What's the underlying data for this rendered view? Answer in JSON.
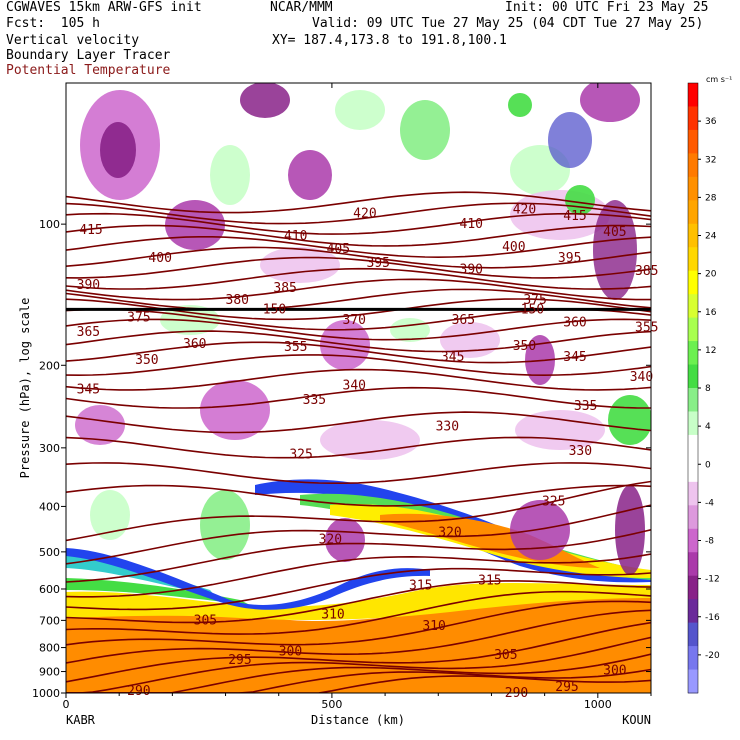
{
  "header": {
    "model": "CGWAVES 15km ARW-GFS init",
    "fcst": "Fcst:  105 h",
    "center": "NCAR/MMM",
    "init": "Init: 00 UTC Fri 23 May 25",
    "valid": "Valid: 09 UTC Tue 27 May 25 (04 CDT Tue 27 May 25)",
    "xy": "XY= 187.4,173.8 to 191.8,100.1",
    "field1": "Vertical velocity",
    "field2": "Boundary Layer Tracer",
    "field3": "Potential Temperature"
  },
  "colors": {
    "theta": "#7a0000",
    "field3": "#8b1a1a"
  },
  "chart_data": {
    "type": "heatmap",
    "title": "Vertical velocity, Boundary Layer Tracer, Potential Temperature",
    "xlabel": "Distance (km)",
    "ylabel": "Pressure (hPa), log scale",
    "xlim": [
      0,
      1100
    ],
    "ylim": [
      1000,
      50
    ],
    "y_scale": "log",
    "x_ticks": [
      "0",
      "500",
      "1000"
    ],
    "x_tick_values": [
      0,
      500,
      1000
    ],
    "y_ticks": [
      "100",
      "200",
      "300",
      "400",
      "500",
      "600",
      "700",
      "800",
      "900",
      "1000"
    ],
    "y_tick_values": [
      100,
      200,
      300,
      400,
      500,
      600,
      700,
      800,
      900,
      1000
    ],
    "endpoints": {
      "left": "KABR",
      "right": "KOUN"
    },
    "colorbar": {
      "unit": "cm s⁻¹",
      "labels": [
        "36",
        "32",
        "28",
        "24",
        "20",
        "16",
        "12",
        "8",
        "4",
        "0",
        "-4",
        "-8",
        "-12",
        "-16",
        "-20"
      ],
      "label_values": [
        36,
        32,
        28,
        24,
        20,
        16,
        12,
        8,
        4,
        0,
        -4,
        -8,
        -12,
        -16,
        -20
      ],
      "colors": [
        "#ff0000",
        "#ff3300",
        "#ff5a00",
        "#ff7a00",
        "#ff9000",
        "#ffa500",
        "#ffc000",
        "#ffd700",
        "#ffff00",
        "#d8ff30",
        "#a8ff50",
        "#6cf050",
        "#44dd44",
        "#88ee88",
        "#c8ffc8",
        "#ffffff",
        "#ffffff",
        "#eec4ee",
        "#dd99dd",
        "#cc66cc",
        "#aa3aaa",
        "#882288",
        "#6a2a9a",
        "#5555cc",
        "#7777ee",
        "#9999ff"
      ]
    },
    "theta_contours": {
      "label_values": [
        290,
        295,
        300,
        305,
        310,
        315,
        320,
        325,
        330,
        335,
        340,
        345,
        350,
        355,
        360,
        365,
        370,
        375,
        380,
        385,
        390,
        395,
        400,
        405,
        410,
        415,
        420
      ],
      "labels": [
        {
          "v": "415",
          "x": 25,
          "p": 103
        },
        {
          "v": "420",
          "x": 540,
          "p": 95
        },
        {
          "v": "420",
          "x": 840,
          "p": 93
        },
        {
          "v": "415",
          "x": 935,
          "p": 96
        },
        {
          "v": "410",
          "x": 410,
          "p": 106
        },
        {
          "v": "410",
          "x": 740,
          "p": 100
        },
        {
          "v": "405",
          "x": 490,
          "p": 113
        },
        {
          "v": "405",
          "x": 1010,
          "p": 104
        },
        {
          "v": "400",
          "x": 155,
          "p": 118
        },
        {
          "v": "400",
          "x": 820,
          "p": 112
        },
        {
          "v": "395",
          "x": 565,
          "p": 121
        },
        {
          "v": "395",
          "x": 925,
          "p": 118
        },
        {
          "v": "390",
          "x": 20,
          "p": 135
        },
        {
          "v": "390",
          "x": 740,
          "p": 125
        },
        {
          "v": "385",
          "x": 390,
          "p": 137
        },
        {
          "v": "385",
          "x": 1070,
          "p": 126
        },
        {
          "v": "380",
          "x": 300,
          "p": 145
        },
        {
          "v": "375",
          "x": 115,
          "p": 158
        },
        {
          "v": "375",
          "x": 860,
          "p": 145
        },
        {
          "v": "370",
          "x": 520,
          "p": 160
        },
        {
          "v": "365",
          "x": 20,
          "p": 170
        },
        {
          "v": "365",
          "x": 725,
          "p": 160
        },
        {
          "v": "360",
          "x": 220,
          "p": 180
        },
        {
          "v": "360",
          "x": 935,
          "p": 162
        },
        {
          "v": "355",
          "x": 410,
          "p": 183
        },
        {
          "v": "355",
          "x": 1070,
          "p": 166
        },
        {
          "v": "350",
          "x": 130,
          "p": 195
        },
        {
          "v": "350",
          "x": 840,
          "p": 182
        },
        {
          "v": "345",
          "x": 20,
          "p": 225
        },
        {
          "v": "345",
          "x": 705,
          "p": 192
        },
        {
          "v": "345",
          "x": 935,
          "p": 192
        },
        {
          "v": "340",
          "x": 520,
          "p": 221
        },
        {
          "v": "340",
          "x": 1060,
          "p": 212
        },
        {
          "v": "335",
          "x": 445,
          "p": 237
        },
        {
          "v": "335",
          "x": 955,
          "p": 244
        },
        {
          "v": "330",
          "x": 695,
          "p": 270
        },
        {
          "v": "330",
          "x": 945,
          "p": 305
        },
        {
          "v": "325",
          "x": 420,
          "p": 310
        },
        {
          "v": "325",
          "x": 895,
          "p": 390
        },
        {
          "v": "320",
          "x": 475,
          "p": 470
        },
        {
          "v": "320",
          "x": 700,
          "p": 455
        },
        {
          "v": "315",
          "x": 645,
          "p": 590
        },
        {
          "v": "315",
          "x": 775,
          "p": 575
        },
        {
          "v": "310",
          "x": 480,
          "p": 680
        },
        {
          "v": "310",
          "x": 670,
          "p": 720
        },
        {
          "v": "305",
          "x": 240,
          "p": 700
        },
        {
          "v": "305",
          "x": 805,
          "p": 830
        },
        {
          "v": "300",
          "x": 400,
          "p": 815
        },
        {
          "v": "300",
          "x": 1010,
          "p": 895
        },
        {
          "v": "295",
          "x": 305,
          "p": 850
        },
        {
          "v": "295",
          "x": 920,
          "p": 970
        },
        {
          "v": "290",
          "x": 115,
          "p": 990
        },
        {
          "v": "290",
          "x": 825,
          "p": 1000
        },
        {
          "v": "150",
          "x": 370,
          "p": 152
        },
        {
          "v": "150",
          "x": 855,
          "p": 152
        }
      ]
    }
  }
}
